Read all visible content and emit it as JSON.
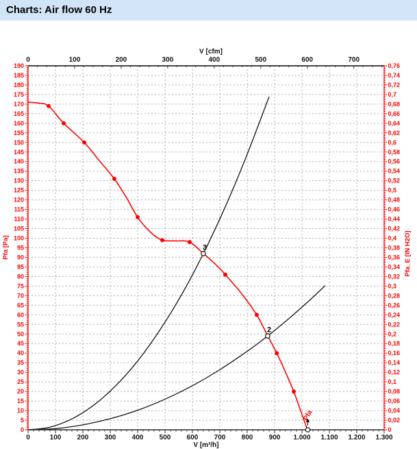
{
  "title": "Charts: Air flow 60 Hz",
  "chart_data": {
    "type": "line",
    "title": "Charts: Air flow 60 Hz",
    "grid": {
      "color": "#ababab",
      "x_step_m3h": 100,
      "y_step_pa": 5,
      "style": "dashed"
    },
    "colors": {
      "accent_red": "#ff0000",
      "axis_black": "#2b2b2b",
      "title_bg": "#d2e4f7",
      "curve_black": "#141414"
    },
    "x_axis_bottom": {
      "label": "V [m³/h]",
      "min": 0,
      "max": 1300,
      "major_step": 100,
      "minor_step": 20,
      "tick_labels": [
        "0",
        "100",
        "200",
        "300",
        "400",
        "500",
        "600",
        "700",
        "800",
        "900",
        "1.000",
        "1.100",
        "1.200",
        "1.300"
      ]
    },
    "x_axis_top": {
      "label": "V [cfm]",
      "min": 0,
      "max": 765,
      "major_step": 100,
      "minor_step": 20,
      "m3h_per_cfm": 1.699011,
      "tick_labels": [
        "0",
        "100",
        "200",
        "300",
        "400",
        "500",
        "600",
        "700"
      ]
    },
    "y_axis_left": {
      "label": "Pfa [Pa]",
      "min": 0,
      "max": 190,
      "major_step": 5,
      "minor_step": 1,
      "tick_labels": [
        "0",
        "5",
        "10",
        "15",
        "20",
        "25",
        "30",
        "35",
        "40",
        "45",
        "50",
        "55",
        "60",
        "65",
        "70",
        "75",
        "80",
        "85",
        "90",
        "95",
        "100",
        "105",
        "110",
        "115",
        "120",
        "125",
        "130",
        "135",
        "140",
        "145",
        "150",
        "155",
        "160",
        "165",
        "170",
        "175",
        "180",
        "185",
        "190"
      ]
    },
    "y_axis_right": {
      "label": "Pfa_E [IN H2O]",
      "min": 0,
      "max": 0.76,
      "major_step": 0.02,
      "minor_step": 0.005,
      "tick_labels": [
        "0",
        "0,02",
        "0,04",
        "0,06",
        "0,08",
        "0,1",
        "0,12",
        "0,14",
        "0,16",
        "0,18",
        "0,2",
        "0,22",
        "0,24",
        "0,26",
        "0,28",
        "0,3",
        "0,32",
        "0,34",
        "0,36",
        "0,38",
        "0,4",
        "0,42",
        "0,44",
        "0,46",
        "0,48",
        "0,5",
        "0,52",
        "0,54",
        "0,56",
        "0,58",
        "0,6",
        "0,62",
        "0,64",
        "0,66",
        "0,68",
        "0,7",
        "0,72",
        "0,74",
        "0,76"
      ]
    },
    "series": [
      {
        "name": "fan-curve-pfa",
        "color": "#ff0000",
        "width": 1.6,
        "smooth": true,
        "points": [
          [
            0,
            171
          ],
          [
            40,
            170.5
          ],
          [
            75,
            169
          ],
          [
            130,
            160
          ],
          [
            205,
            150
          ],
          [
            260,
            140.5
          ],
          [
            315,
            131
          ],
          [
            360,
            121
          ],
          [
            400,
            111
          ],
          [
            448,
            103
          ],
          [
            490,
            99
          ],
          [
            540,
            98.6
          ],
          [
            590,
            98
          ],
          [
            640,
            92
          ],
          [
            680,
            87
          ],
          [
            720,
            81
          ],
          [
            780,
            71
          ],
          [
            835,
            60
          ],
          [
            875,
            49
          ],
          [
            908,
            40
          ],
          [
            940,
            30
          ],
          [
            970,
            20
          ],
          [
            1020,
            0
          ]
        ],
        "markers": [
          [
            75,
            169
          ],
          [
            130,
            160
          ],
          [
            205,
            150
          ],
          [
            315,
            131
          ],
          [
            400,
            111
          ],
          [
            490,
            99
          ],
          [
            590,
            98
          ],
          [
            720,
            81
          ],
          [
            835,
            60
          ],
          [
            908,
            40
          ],
          [
            970,
            20
          ]
        ]
      },
      {
        "name": "system-curve-steep",
        "color": "#141414",
        "width": 1.3,
        "smooth": true,
        "points": [
          [
            0,
            0
          ],
          [
            80,
            1.4
          ],
          [
            160,
            5.7
          ],
          [
            240,
            12.9
          ],
          [
            320,
            23
          ],
          [
            400,
            35.9
          ],
          [
            480,
            51.8
          ],
          [
            560,
            70.4
          ],
          [
            640,
            92
          ],
          [
            720,
            116.4
          ],
          [
            800,
            143.8
          ],
          [
            880,
            173.9
          ]
        ]
      },
      {
        "name": "system-curve-shallow",
        "color": "#141414",
        "width": 1.3,
        "smooth": true,
        "points": [
          [
            0,
            0
          ],
          [
            100,
            0.6
          ],
          [
            200,
            2.6
          ],
          [
            300,
            5.8
          ],
          [
            400,
            10.2
          ],
          [
            500,
            16
          ],
          [
            600,
            23
          ],
          [
            700,
            31.4
          ],
          [
            800,
            41
          ],
          [
            875,
            49
          ],
          [
            950,
            57.8
          ],
          [
            1020,
            66.6
          ],
          [
            1085,
            75.3
          ]
        ]
      }
    ],
    "operating_points": [
      {
        "label": "3",
        "v": 640,
        "p": 92
      },
      {
        "label": "2",
        "v": 875,
        "p": 49
      },
      {
        "label": "",
        "v": 1021,
        "p": 0
      }
    ],
    "annotation": {
      "text": "Pfa",
      "v": 1028,
      "p": 7,
      "rotation": -62,
      "arrow": true
    }
  }
}
